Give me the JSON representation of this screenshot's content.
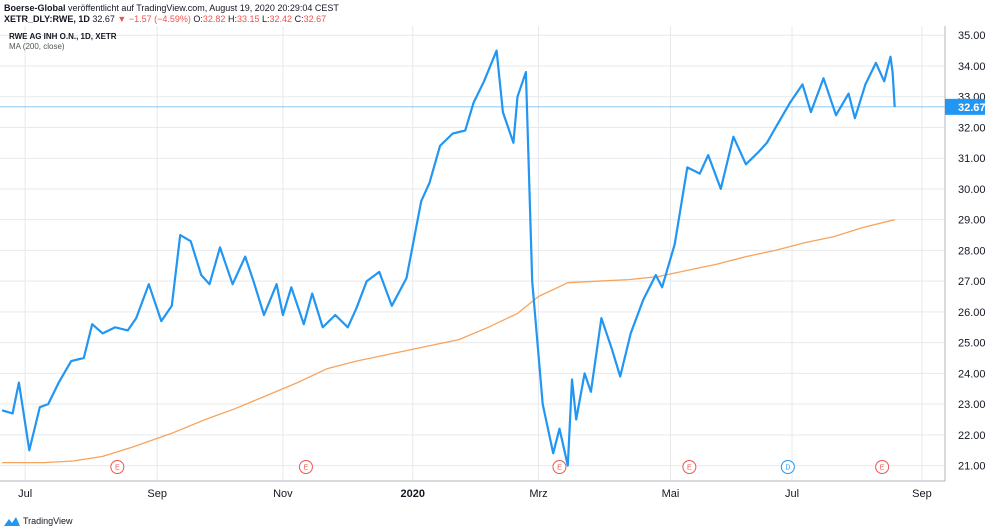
{
  "header": {
    "publisher": "Boerse-Global",
    "published_text": " veröffentlicht auf TradingView.com, August 19, 2020 20:29:04 CEST"
  },
  "ticker": {
    "symbol": "XETR_DLY:RWE, 1D",
    "last": "32.67",
    "change": "▼ −1.57 (−4.59%)",
    "open_label": "O:",
    "open": "32.82",
    "high_label": "H:",
    "high": "33.15",
    "low_label": "L:",
    "low": "32.42",
    "close_label": "C:",
    "close": "32.67"
  },
  "legend": {
    "symbol_name": "RWE AG INH O.N., 1D, XETR",
    "ma_label": "MA (200, close)"
  },
  "footer": {
    "brand": "TradingView"
  },
  "colors": {
    "price_line": "#2196f3",
    "ma_line": "#f7a35c",
    "grid": "#e7e9ee",
    "last_price_bg": "#2196f3",
    "event_earnings": "#ef5350",
    "event_dividend": "#2196f3"
  },
  "chart_data": {
    "type": "line",
    "title": "",
    "xlabel": "",
    "ylabel": "",
    "ylim": [
      20.5,
      35.3
    ],
    "yticks": [
      21,
      22,
      23,
      24,
      25,
      26,
      27,
      28,
      29,
      30,
      31,
      32,
      33,
      34,
      35
    ],
    "ytick_labels": [
      "21.00",
      "22.00",
      "23.00",
      "24.00",
      "25.00",
      "26.00",
      "27.00",
      "28.00",
      "29.00",
      "30.00",
      "31.00",
      "32.00",
      "33.00",
      "34.00",
      "35.00"
    ],
    "x_tick_labels": [
      {
        "label": "Jul",
        "date": "2019-07-01",
        "bold": false
      },
      {
        "label": "Sep",
        "date": "2019-09-02",
        "bold": false
      },
      {
        "label": "Nov",
        "date": "2019-11-01",
        "bold": false
      },
      {
        "label": "2020",
        "date": "2020-01-02",
        "bold": true
      },
      {
        "label": "Mrz",
        "date": "2020-03-02",
        "bold": false
      },
      {
        "label": "Mai",
        "date": "2020-05-04",
        "bold": false
      },
      {
        "label": "Jul",
        "date": "2020-07-01",
        "bold": false
      },
      {
        "label": "Sep",
        "date": "2020-09-01",
        "bold": false
      }
    ],
    "last_value_label": "32.67",
    "series": [
      {
        "name": "RWE AG INH O.N.",
        "x": [
          "2019-06-20",
          "2019-06-25",
          "2019-06-28",
          "2019-07-03",
          "2019-07-08",
          "2019-07-12",
          "2019-07-17",
          "2019-07-23",
          "2019-07-29",
          "2019-08-02",
          "2019-08-07",
          "2019-08-13",
          "2019-08-19",
          "2019-08-23",
          "2019-08-29",
          "2019-09-04",
          "2019-09-09",
          "2019-09-13",
          "2019-09-18",
          "2019-09-23",
          "2019-09-27",
          "2019-10-02",
          "2019-10-08",
          "2019-10-14",
          "2019-10-18",
          "2019-10-23",
          "2019-10-29",
          "2019-11-01",
          "2019-11-05",
          "2019-11-11",
          "2019-11-15",
          "2019-11-20",
          "2019-11-26",
          "2019-12-02",
          "2019-12-06",
          "2019-12-11",
          "2019-12-17",
          "2019-12-23",
          "2019-12-30",
          "2020-01-06",
          "2020-01-10",
          "2020-01-15",
          "2020-01-21",
          "2020-01-27",
          "2020-01-31",
          "2020-02-05",
          "2020-02-11",
          "2020-02-14",
          "2020-02-19",
          "2020-02-21",
          "2020-02-25",
          "2020-02-28",
          "2020-03-04",
          "2020-03-09",
          "2020-03-12",
          "2020-03-16",
          "2020-03-18",
          "2020-03-20",
          "2020-03-24",
          "2020-03-27",
          "2020-04-01",
          "2020-04-06",
          "2020-04-10",
          "2020-04-15",
          "2020-04-21",
          "2020-04-27",
          "2020-04-30",
          "2020-05-06",
          "2020-05-12",
          "2020-05-18",
          "2020-05-22",
          "2020-05-28",
          "2020-06-03",
          "2020-06-09",
          "2020-06-15",
          "2020-06-19",
          "2020-06-24",
          "2020-06-30",
          "2020-07-06",
          "2020-07-10",
          "2020-07-16",
          "2020-07-22",
          "2020-07-28",
          "2020-07-31",
          "2020-08-05",
          "2020-08-10",
          "2020-08-14",
          "2020-08-17",
          "2020-08-18",
          "2020-08-19"
        ],
        "values": [
          22.8,
          22.7,
          23.7,
          21.5,
          22.9,
          23.0,
          23.7,
          24.4,
          24.5,
          25.6,
          25.3,
          25.5,
          25.4,
          25.8,
          26.9,
          25.7,
          26.2,
          28.5,
          28.3,
          27.2,
          26.9,
          28.1,
          26.9,
          27.8,
          27.0,
          25.9,
          26.9,
          25.9,
          26.8,
          25.6,
          26.6,
          25.5,
          25.9,
          25.5,
          26.1,
          27.0,
          27.3,
          26.2,
          27.1,
          29.6,
          30.2,
          31.4,
          31.8,
          31.9,
          32.8,
          33.5,
          34.5,
          32.5,
          31.5,
          33.0,
          33.8,
          27.0,
          23.0,
          21.4,
          22.2,
          21.0,
          23.8,
          22.5,
          24.0,
          23.4,
          25.8,
          24.8,
          23.9,
          25.3,
          26.4,
          27.2,
          26.8,
          28.2,
          30.7,
          30.5,
          31.1,
          30.0,
          31.7,
          30.8,
          31.2,
          31.5,
          32.1,
          32.8,
          33.4,
          32.5,
          33.6,
          32.4,
          33.1,
          32.3,
          33.4,
          34.1,
          33.5,
          34.3,
          33.8,
          32.67
        ]
      },
      {
        "name": "MA (200, close)",
        "x": [
          "2019-06-20",
          "2019-07-10",
          "2019-07-24",
          "2019-08-07",
          "2019-08-21",
          "2019-09-09",
          "2019-09-25",
          "2019-10-09",
          "2019-10-25",
          "2019-11-08",
          "2019-11-22",
          "2019-12-06",
          "2019-12-20",
          "2020-01-10",
          "2020-01-24",
          "2020-02-07",
          "2020-02-21",
          "2020-03-02",
          "2020-03-16",
          "2020-03-30",
          "2020-04-14",
          "2020-04-28",
          "2020-05-12",
          "2020-05-26",
          "2020-06-09",
          "2020-06-23",
          "2020-07-07",
          "2020-07-21",
          "2020-08-04",
          "2020-08-19"
        ],
        "values": [
          21.1,
          21.1,
          21.15,
          21.3,
          21.6,
          22.05,
          22.5,
          22.85,
          23.3,
          23.7,
          24.15,
          24.4,
          24.6,
          24.9,
          25.1,
          25.5,
          25.95,
          26.5,
          26.95,
          27.0,
          27.05,
          27.15,
          27.35,
          27.55,
          27.8,
          28.0,
          28.25,
          28.45,
          28.75,
          29.0
        ]
      }
    ],
    "events": [
      {
        "type": "E",
        "date": "2019-08-14"
      },
      {
        "type": "E",
        "date": "2019-11-12"
      },
      {
        "type": "E",
        "date": "2020-03-12"
      },
      {
        "type": "E",
        "date": "2020-05-13"
      },
      {
        "type": "D",
        "date": "2020-06-29"
      },
      {
        "type": "E",
        "date": "2020-08-13"
      }
    ]
  }
}
